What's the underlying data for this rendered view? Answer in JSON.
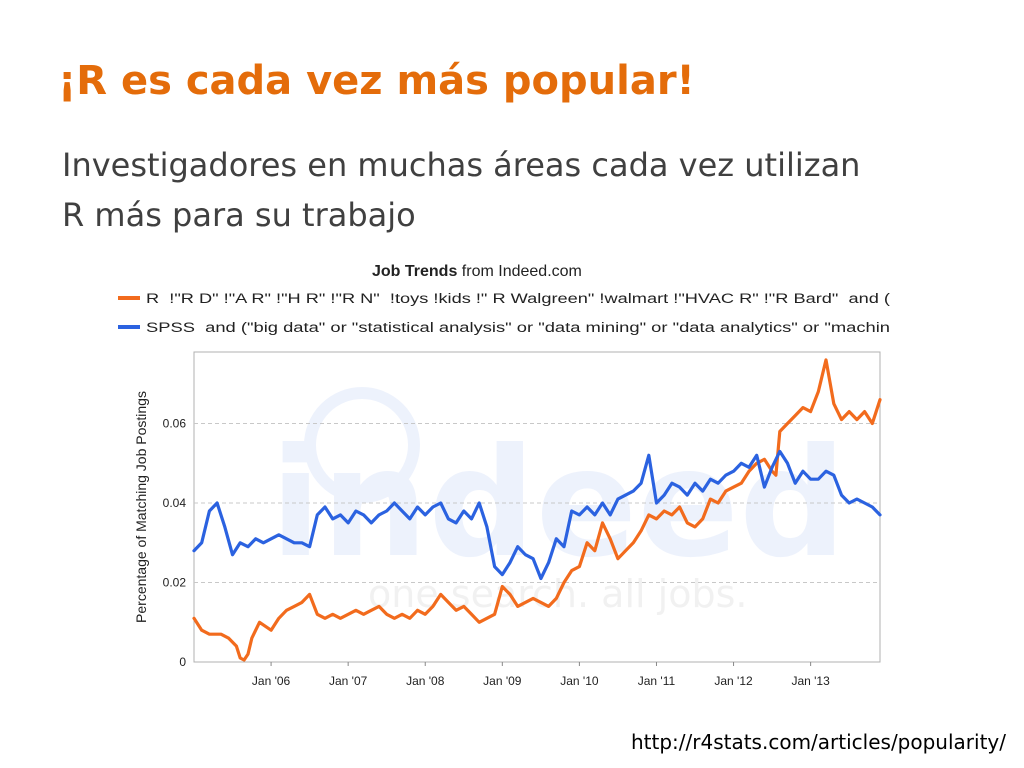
{
  "slide": {
    "title": "¡R es cada vez más popular!",
    "subtitle_lines": [
      "Investigadores en muchas áreas cada vez utilizan",
      "R más para su trabajo"
    ],
    "source_url": "http://r4stats.com/articles/popularity/"
  },
  "colors": {
    "title": "#e46c0a",
    "r_series": "#f26b1d",
    "spss_series": "#2b62e0"
  },
  "chart_data": {
    "type": "line",
    "title_bold": "Job Trends",
    "title_rest": " from Indeed.com",
    "ylabel": "Percentage of Matching Job Postings",
    "xlabel": "",
    "x_ticks": [
      "Jan '06",
      "Jan '07",
      "Jan '08",
      "Jan '09",
      "Jan '10",
      "Jan '11",
      "Jan '12",
      "Jan '13"
    ],
    "x_tick_values": [
      2006,
      2007,
      2008,
      2009,
      2010,
      2011,
      2012,
      2013
    ],
    "y_ticks": [
      "0",
      "0.02",
      "0.04",
      "0.06"
    ],
    "y_tick_values": [
      0,
      0.02,
      0.04,
      0.06
    ],
    "xlim": [
      2005.0,
      2013.9
    ],
    "ylim": [
      0,
      0.078
    ],
    "grid": "horizontal-dashed",
    "legend_position": "top",
    "watermark": {
      "logo": "indeed",
      "tagline": "one search. all jobs."
    },
    "series": [
      {
        "name": "R  !\"R D\" !\"A R\" !\"H R\" !\"R N\"  !toys !kids !\" R Walgreen\" !walmart !\"HVAC R\" !\"R Bard\"  and (",
        "color": "#f26b1d",
        "x": [
          2005.0,
          2005.1,
          2005.2,
          2005.35,
          2005.45,
          2005.55,
          2005.6,
          2005.65,
          2005.7,
          2005.75,
          2005.85,
          2006.0,
          2006.1,
          2006.2,
          2006.3,
          2006.4,
          2006.5,
          2006.6,
          2006.7,
          2006.8,
          2006.9,
          2007.0,
          2007.1,
          2007.2,
          2007.3,
          2007.4,
          2007.5,
          2007.6,
          2007.7,
          2007.8,
          2007.9,
          2008.0,
          2008.1,
          2008.2,
          2008.3,
          2008.4,
          2008.5,
          2008.6,
          2008.7,
          2008.8,
          2008.9,
          2009.0,
          2009.1,
          2009.2,
          2009.3,
          2009.4,
          2009.5,
          2009.6,
          2009.7,
          2009.8,
          2009.9,
          2010.0,
          2010.1,
          2010.2,
          2010.3,
          2010.4,
          2010.5,
          2010.6,
          2010.7,
          2010.8,
          2010.9,
          2011.0,
          2011.1,
          2011.2,
          2011.3,
          2011.4,
          2011.5,
          2011.6,
          2011.7,
          2011.8,
          2011.9,
          2012.0,
          2012.1,
          2012.2,
          2012.3,
          2012.4,
          2012.5,
          2012.55,
          2012.6,
          2012.7,
          2012.8,
          2012.9,
          2013.0,
          2013.1,
          2013.2,
          2013.3,
          2013.4,
          2013.5,
          2013.6,
          2013.7,
          2013.8,
          2013.9
        ],
        "y": [
          0.011,
          0.008,
          0.007,
          0.007,
          0.006,
          0.004,
          0.001,
          0.0005,
          0.002,
          0.006,
          0.01,
          0.008,
          0.011,
          0.013,
          0.014,
          0.015,
          0.017,
          0.012,
          0.011,
          0.012,
          0.011,
          0.012,
          0.013,
          0.012,
          0.013,
          0.014,
          0.012,
          0.011,
          0.012,
          0.011,
          0.013,
          0.012,
          0.014,
          0.017,
          0.015,
          0.013,
          0.014,
          0.012,
          0.01,
          0.011,
          0.012,
          0.019,
          0.017,
          0.014,
          0.015,
          0.016,
          0.015,
          0.014,
          0.016,
          0.02,
          0.023,
          0.024,
          0.03,
          0.028,
          0.035,
          0.031,
          0.026,
          0.028,
          0.03,
          0.033,
          0.037,
          0.036,
          0.038,
          0.037,
          0.039,
          0.035,
          0.034,
          0.036,
          0.041,
          0.04,
          0.043,
          0.044,
          0.045,
          0.048,
          0.05,
          0.051,
          0.048,
          0.047,
          0.058,
          0.06,
          0.062,
          0.064,
          0.063,
          0.068,
          0.076,
          0.065,
          0.061,
          0.063,
          0.061,
          0.063,
          0.06,
          0.066
        ]
      },
      {
        "name": "SPSS  and (\"big data\" or \"statistical analysis\" or \"data mining\" or \"data analytics\" or \"machin",
        "color": "#2b62e0",
        "x": [
          2005.0,
          2005.1,
          2005.2,
          2005.3,
          2005.4,
          2005.5,
          2005.6,
          2005.7,
          2005.8,
          2005.9,
          2006.0,
          2006.1,
          2006.2,
          2006.3,
          2006.4,
          2006.5,
          2006.6,
          2006.7,
          2006.8,
          2006.9,
          2007.0,
          2007.1,
          2007.2,
          2007.3,
          2007.4,
          2007.5,
          2007.6,
          2007.7,
          2007.8,
          2007.9,
          2008.0,
          2008.1,
          2008.2,
          2008.3,
          2008.4,
          2008.5,
          2008.6,
          2008.7,
          2008.8,
          2008.9,
          2009.0,
          2009.1,
          2009.2,
          2009.3,
          2009.4,
          2009.5,
          2009.6,
          2009.7,
          2009.8,
          2009.9,
          2010.0,
          2010.1,
          2010.2,
          2010.3,
          2010.4,
          2010.5,
          2010.6,
          2010.7,
          2010.8,
          2010.9,
          2011.0,
          2011.1,
          2011.2,
          2011.3,
          2011.4,
          2011.5,
          2011.6,
          2011.7,
          2011.8,
          2011.9,
          2012.0,
          2012.1,
          2012.2,
          2012.3,
          2012.4,
          2012.5,
          2012.6,
          2012.7,
          2012.8,
          2012.9,
          2013.0,
          2013.1,
          2013.2,
          2013.3,
          2013.4,
          2013.5,
          2013.6,
          2013.7,
          2013.8,
          2013.9
        ],
        "y": [
          0.028,
          0.03,
          0.038,
          0.04,
          0.034,
          0.027,
          0.03,
          0.029,
          0.031,
          0.03,
          0.031,
          0.032,
          0.031,
          0.03,
          0.03,
          0.029,
          0.037,
          0.039,
          0.036,
          0.037,
          0.035,
          0.038,
          0.037,
          0.035,
          0.037,
          0.038,
          0.04,
          0.038,
          0.036,
          0.039,
          0.037,
          0.039,
          0.04,
          0.036,
          0.035,
          0.038,
          0.036,
          0.04,
          0.034,
          0.024,
          0.022,
          0.025,
          0.029,
          0.027,
          0.026,
          0.021,
          0.025,
          0.031,
          0.029,
          0.038,
          0.037,
          0.039,
          0.037,
          0.04,
          0.037,
          0.041,
          0.042,
          0.043,
          0.045,
          0.052,
          0.04,
          0.042,
          0.045,
          0.044,
          0.042,
          0.045,
          0.043,
          0.046,
          0.045,
          0.047,
          0.048,
          0.05,
          0.049,
          0.052,
          0.044,
          0.049,
          0.053,
          0.05,
          0.045,
          0.048,
          0.046,
          0.046,
          0.048,
          0.047,
          0.042,
          0.04,
          0.041,
          0.04,
          0.039,
          0.037
        ]
      }
    ]
  }
}
